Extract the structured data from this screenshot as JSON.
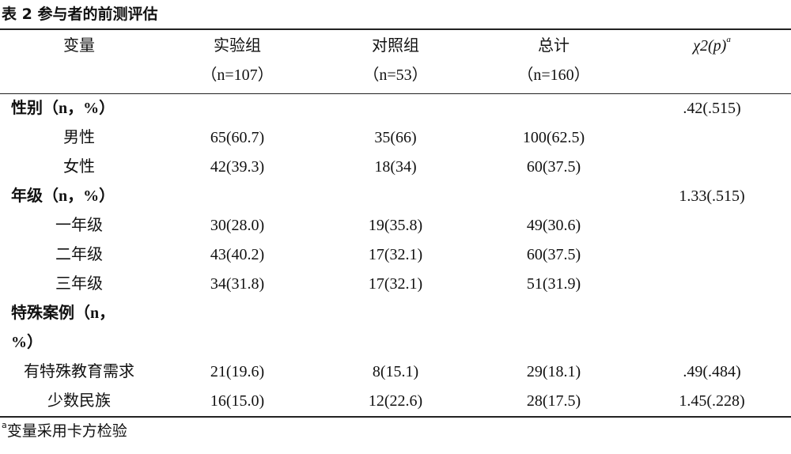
{
  "title": "表 2  参与者的前测评估",
  "table": {
    "header": [
      "变量",
      "实验组（n=107）",
      "对照组（n=53）",
      "总计（n=160）",
      "χ2(p)"
    ],
    "header_note": "a",
    "rows": [
      {
        "label": "性别（n，%）",
        "group": true,
        "cells": [
          null,
          null,
          null,
          ".42(.515)"
        ]
      },
      {
        "label": "男性",
        "group": false,
        "cells": [
          "65(60.7)",
          "35(66)",
          "100(62.5)",
          null
        ]
      },
      {
        "label": "女性",
        "group": false,
        "cells": [
          "42(39.3)",
          "18(34)",
          "60(37.5)",
          null
        ]
      },
      {
        "label": "年级（n，%）",
        "group": true,
        "cells": [
          null,
          null,
          null,
          "1.33(.515)"
        ]
      },
      {
        "label": "一年级",
        "group": false,
        "cells": [
          "30(28.0)",
          "19(35.8)",
          "49(30.6)",
          null
        ]
      },
      {
        "label": "二年级",
        "group": false,
        "cells": [
          "43(40.2)",
          "17(32.1)",
          "60(37.5)",
          null
        ]
      },
      {
        "label": "三年级",
        "group": false,
        "cells": [
          "34(31.8)",
          "17(32.1)",
          "51(31.9)",
          null
        ]
      },
      {
        "label": "特殊案例（n，%）",
        "group": true,
        "cells": [
          null,
          null,
          null,
          null
        ]
      },
      {
        "label": "有特殊教育需求",
        "group": false,
        "cells": [
          "21(19.6)",
          "8(15.1)",
          "29(18.1)",
          ".49(.484)"
        ]
      },
      {
        "label": "少数民族",
        "group": false,
        "cells": [
          "16(15.0)",
          "12(22.6)",
          "28(17.5)",
          "1.45(.228)"
        ]
      }
    ]
  },
  "footnote": {
    "marker": "a",
    "text": "变量采用卡方检验"
  }
}
